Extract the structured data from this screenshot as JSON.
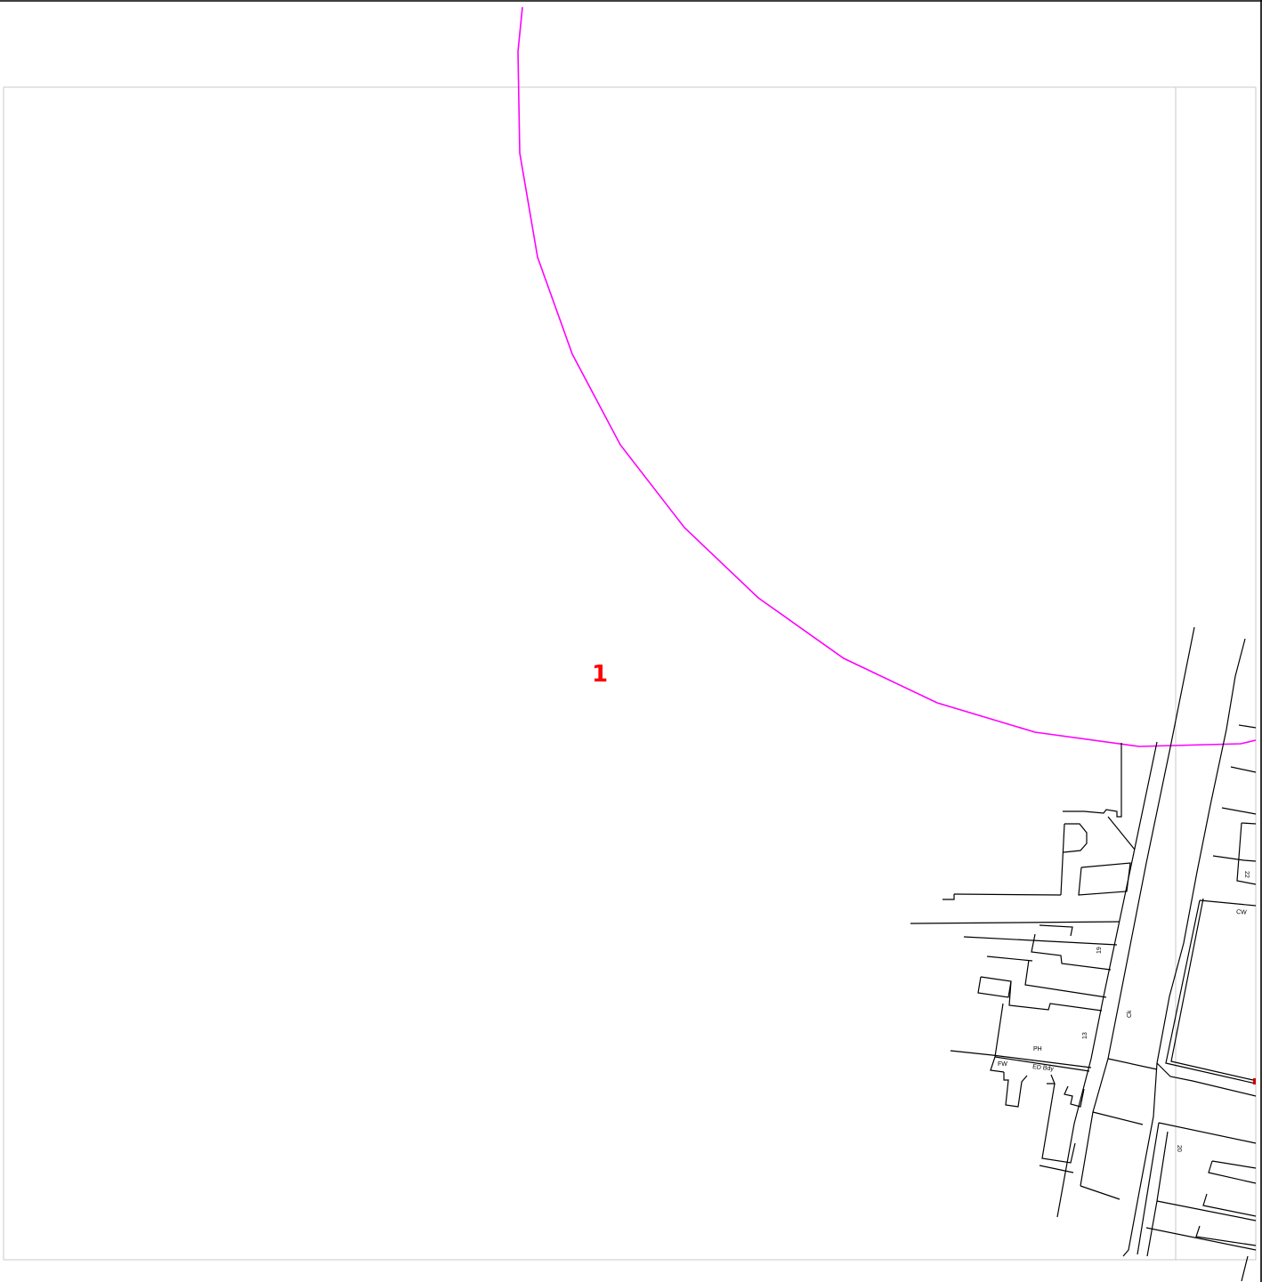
{
  "map": {
    "site_label": "1",
    "features": {
      "road_label": "Ck",
      "pub_label": "PH",
      "footway_label": "FW",
      "boundary_label": "ED Bdy",
      "cycleway_label": "CW",
      "house_numbers": [
        "19",
        "13",
        "22",
        "20"
      ]
    },
    "colors": {
      "buffer_ring": "#ff00ff",
      "site_label": "#ff0000",
      "linework": "#000000",
      "tile_grid": "#c8c8c8",
      "background": "#ffffff"
    }
  }
}
